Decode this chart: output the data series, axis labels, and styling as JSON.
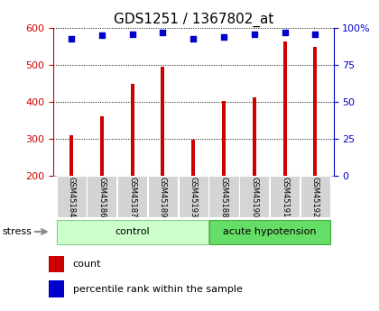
{
  "title": "GDS1251 / 1367802_at",
  "samples": [
    "GSM45184",
    "GSM45186",
    "GSM45187",
    "GSM45189",
    "GSM45193",
    "GSM45188",
    "GSM45190",
    "GSM45191",
    "GSM45192"
  ],
  "counts": [
    310,
    360,
    450,
    495,
    298,
    402,
    412,
    563,
    550
  ],
  "percentiles": [
    93,
    95,
    96,
    97,
    93,
    94,
    96,
    97,
    96
  ],
  "groups": [
    {
      "label": "control",
      "start": 0,
      "end": 5,
      "color": "#ccffcc",
      "border": "#88cc88"
    },
    {
      "label": "acute hypotension",
      "start": 5,
      "end": 9,
      "color": "#66dd66",
      "border": "#44aa44"
    }
  ],
  "bar_color": "#cc0000",
  "dot_color": "#0000cc",
  "ylim_left": [
    200,
    600
  ],
  "ylim_right": [
    0,
    100
  ],
  "yticks_left": [
    200,
    300,
    400,
    500,
    600
  ],
  "yticks_right": [
    0,
    25,
    50,
    75,
    100
  ],
  "ylabel_left_color": "#cc0000",
  "ylabel_right_color": "#0000cc",
  "stress_label": "stress",
  "legend_count_label": "count",
  "legend_pct_label": "percentile rank within the sample",
  "title_fontsize": 11,
  "tick_fontsize": 8,
  "label_fontsize": 8,
  "bar_width": 0.12
}
